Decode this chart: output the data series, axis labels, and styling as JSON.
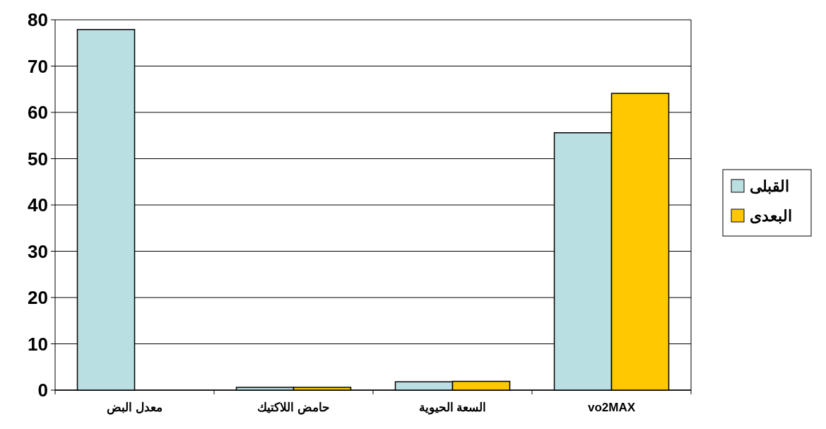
{
  "chart_data": {
    "type": "bar",
    "categories": [
      "معدل البض",
      "حامض اللاكتيك",
      "السعة الحيوية",
      "vo2MAX"
    ],
    "series": [
      {
        "name": "القبلى",
        "color": "#b9dfe2",
        "values": [
          77.9,
          0.6,
          1.8,
          55.6
        ]
      },
      {
        "name": "البعدى",
        "color": "#ffc800",
        "values": [
          0,
          0.6,
          1.9,
          64.1
        ]
      }
    ],
    "ylim": [
      0,
      80
    ],
    "yticks": [
      0,
      10,
      20,
      30,
      40,
      50,
      60,
      70,
      80
    ],
    "grid": "y",
    "legend": "right"
  }
}
